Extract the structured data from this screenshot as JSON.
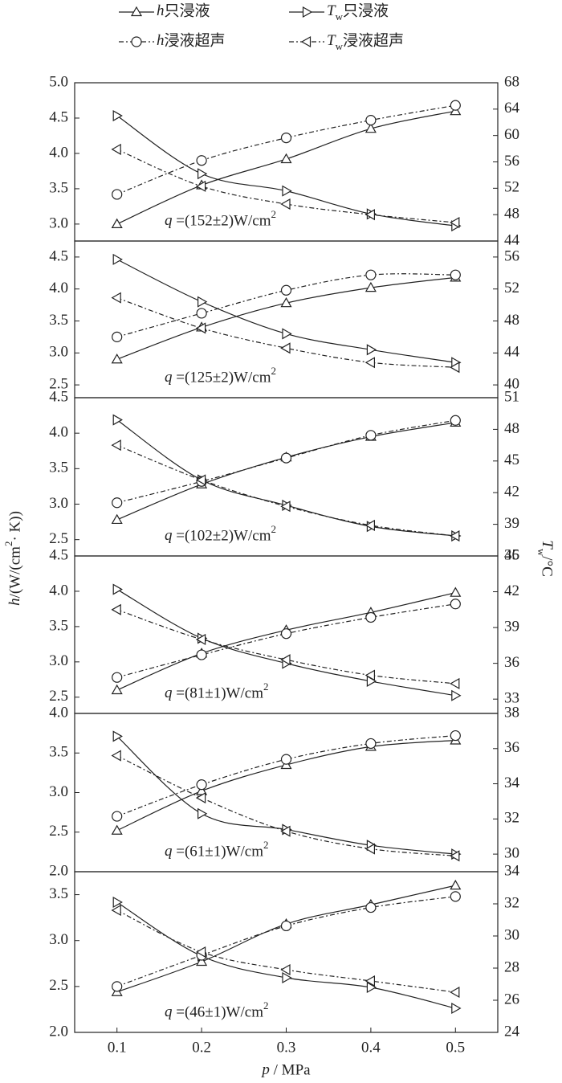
{
  "chart_data": [
    {
      "type": "line",
      "xlim": [
        0.05,
        0.55
      ],
      "x": [
        0.1,
        0.2,
        0.3,
        0.4,
        0.5
      ],
      "ylabel": "h/(W/(cm2· K))",
      "y2label": "Tw/°C",
      "ylim": [
        2.76,
        5.0
      ],
      "yticks": [
        {
          "value": 3.0,
          "label": "3.0"
        },
        3.5,
        {
          "value": 4.0,
          "label": "4.0"
        },
        4.5,
        {
          "value": 5.0,
          "label": "5.0"
        }
      ],
      "y2lim": [
        44,
        68
      ],
      "y2ticks": [
        44,
        48,
        52,
        56,
        60,
        64,
        68
      ],
      "annotation": "q =(152±2)W/cm2",
      "series": [
        {
          "name": "h只浸液",
          "color": "#222222",
          "marker": "triangle-up",
          "dash": "solid",
          "values": [
            3.0,
            3.55,
            3.92,
            4.35,
            4.6
          ]
        },
        {
          "name": "Tw只浸液",
          "color": "#222222",
          "marker": "triangle-right",
          "dash": "solid",
          "axis": "y2",
          "values": [
            63.0,
            54.2,
            51.6,
            48.1,
            46.3
          ]
        },
        {
          "name": "h浸液超声",
          "color": "#222222",
          "marker": "circle",
          "dash": "dashdot",
          "values": [
            3.42,
            3.9,
            4.22,
            4.47,
            4.68
          ]
        },
        {
          "name": "Tw浸液超声",
          "color": "#222222",
          "marker": "triangle-left",
          "dash": "dashdot",
          "axis": "y2",
          "values": [
            57.9,
            52.3,
            49.6,
            48.0,
            46.8
          ]
        }
      ]
    },
    {
      "type": "line",
      "xlim": [
        0.05,
        0.55
      ],
      "x": [
        0.1,
        0.2,
        0.3,
        0.4,
        0.5
      ],
      "ylim": [
        2.3,
        4.75
      ],
      "yticks": [
        2.5,
        {
          "value": 3.0,
          "label": "3.0"
        },
        3.5,
        {
          "value": 4.0,
          "label": "4.0"
        },
        4.5
      ],
      "y2lim": [
        38.4,
        58
      ],
      "y2ticks": [
        40,
        44,
        48,
        52,
        56
      ],
      "annotation": "q =(125±2)W/cm2",
      "series": [
        {
          "color": "#222222",
          "marker": "triangle-up",
          "dash": "solid",
          "values": [
            2.9,
            3.4,
            3.78,
            4.02,
            4.18
          ]
        },
        {
          "color": "#222222",
          "marker": "triangle-right",
          "dash": "solid",
          "axis": "y2",
          "values": [
            55.7,
            50.4,
            46.4,
            44.4,
            42.8
          ]
        },
        {
          "color": "#222222",
          "marker": "circle",
          "dash": "dashdot",
          "values": [
            3.25,
            3.62,
            3.98,
            4.22,
            4.22
          ]
        },
        {
          "color": "#222222",
          "marker": "triangle-left",
          "dash": "dashdot",
          "axis": "y2",
          "values": [
            50.9,
            47.1,
            44.6,
            42.8,
            42.2
          ]
        }
      ]
    },
    {
      "type": "line",
      "xlim": [
        0.05,
        0.55
      ],
      "x": [
        0.1,
        0.2,
        0.3,
        0.4,
        0.5
      ],
      "ylim": [
        2.27,
        4.5
      ],
      "yticks": [
        2.5,
        {
          "value": 3.0,
          "label": "3.0"
        },
        3.5,
        {
          "value": 4.0,
          "label": "4.0"
        },
        4.5
      ],
      "y2lim": [
        36,
        51
      ],
      "y2ticks": [
        36,
        39,
        42,
        45,
        48,
        51
      ],
      "annotation": "q =(102±2)W/cm2",
      "series": [
        {
          "color": "#222222",
          "marker": "triangle-up",
          "dash": "solid",
          "values": [
            2.78,
            3.28,
            3.66,
            3.95,
            4.15
          ]
        },
        {
          "color": "#222222",
          "marker": "triangle-right",
          "dash": "solid",
          "axis": "y2",
          "values": [
            48.9,
            43.2,
            40.8,
            38.8,
            37.9
          ]
        },
        {
          "color": "#222222",
          "marker": "circle",
          "dash": "dashdot",
          "values": [
            3.02,
            3.32,
            3.65,
            3.97,
            4.18
          ]
        },
        {
          "color": "#222222",
          "marker": "triangle-left",
          "dash": "dashdot",
          "axis": "y2",
          "values": [
            46.5,
            43.2,
            40.7,
            38.9,
            37.9
          ]
        }
      ]
    },
    {
      "type": "line",
      "xlim": [
        0.05,
        0.55
      ],
      "x": [
        0.1,
        0.2,
        0.3,
        0.4,
        0.5
      ],
      "ylim": [
        2.27,
        4.5
      ],
      "yticks": [
        2.5,
        {
          "value": 3.0,
          "label": "3.0"
        },
        3.5,
        {
          "value": 4.0,
          "label": "4.0"
        },
        4.5
      ],
      "y2lim": [
        31.8,
        45
      ],
      "y2ticks": [
        33,
        36,
        39,
        42,
        45
      ],
      "annotation": "q =(81±1)W/cm2",
      "series": [
        {
          "color": "#222222",
          "marker": "triangle-up",
          "dash": "solid",
          "values": [
            2.6,
            3.12,
            3.45,
            3.7,
            3.98
          ]
        },
        {
          "color": "#222222",
          "marker": "triangle-right",
          "dash": "solid",
          "axis": "y2",
          "values": [
            42.2,
            38.1,
            36.0,
            34.5,
            33.3
          ]
        },
        {
          "color": "#222222",
          "marker": "circle",
          "dash": "dashdot",
          "values": [
            2.78,
            3.1,
            3.4,
            3.63,
            3.82
          ]
        },
        {
          "color": "#222222",
          "marker": "triangle-left",
          "dash": "dashdot",
          "axis": "y2",
          "values": [
            40.5,
            38.0,
            36.3,
            35.0,
            34.3
          ]
        }
      ]
    },
    {
      "type": "line",
      "xlim": [
        0.05,
        0.55
      ],
      "x": [
        0.1,
        0.2,
        0.3,
        0.4,
        0.5
      ],
      "ylim": [
        2.0,
        4.0
      ],
      "yticks": [
        {
          "value": 2.0,
          "label": "2.0"
        },
        2.5,
        {
          "value": 3.0,
          "label": "3.0"
        },
        3.5,
        {
          "value": 4.0,
          "label": "4.0"
        }
      ],
      "y2lim": [
        29,
        38
      ],
      "y2ticks": [
        30,
        32,
        34,
        36,
        38
      ],
      "annotation": "q =(61±1)W/cm2",
      "series": [
        {
          "color": "#222222",
          "marker": "triangle-up",
          "dash": "solid",
          "values": [
            2.52,
            3.02,
            3.35,
            3.58,
            3.66
          ]
        },
        {
          "color": "#222222",
          "marker": "triangle-right",
          "dash": "solid",
          "axis": "y2",
          "values": [
            36.7,
            32.3,
            31.4,
            30.5,
            30.0
          ]
        },
        {
          "color": "#222222",
          "marker": "circle",
          "dash": "dashdot",
          "values": [
            2.7,
            3.1,
            3.42,
            3.62,
            3.72
          ]
        },
        {
          "color": "#222222",
          "marker": "triangle-left",
          "dash": "dashdot",
          "axis": "y2",
          "values": [
            35.6,
            33.2,
            31.3,
            30.3,
            29.9
          ]
        }
      ]
    },
    {
      "type": "line",
      "xlim": [
        0.05,
        0.55
      ],
      "x": [
        0.1,
        0.2,
        0.3,
        0.4,
        0.5
      ],
      "xlabel": "p / MPa",
      "xticks": [
        0.1,
        0.2,
        0.3,
        0.4,
        0.5
      ],
      "ylim": [
        2.0,
        3.75
      ],
      "yticks": [
        {
          "value": 2.0,
          "label": "2.0"
        },
        2.5,
        {
          "value": 3.0,
          "label": "3.0"
        },
        3.5
      ],
      "y2lim": [
        24,
        34
      ],
      "y2ticks": [
        24,
        26,
        28,
        30,
        32,
        34
      ],
      "annotation": "q =(46±1)W/cm2",
      "series": [
        {
          "color": "#222222",
          "marker": "triangle-up",
          "dash": "solid",
          "values": [
            2.44,
            2.77,
            3.18,
            3.39,
            3.6
          ]
        },
        {
          "color": "#222222",
          "marker": "triangle-right",
          "dash": "solid",
          "axis": "y2",
          "values": [
            32.1,
            28.75,
            27.4,
            26.8,
            25.5
          ]
        },
        {
          "color": "#222222",
          "marker": "circle",
          "dash": "dashdot",
          "values": [
            2.5,
            2.84,
            3.16,
            3.36,
            3.48
          ]
        },
        {
          "color": "#222222",
          "marker": "triangle-left",
          "dash": "dashdot",
          "axis": "y2",
          "values": [
            31.6,
            29.0,
            27.9,
            27.2,
            26.5
          ]
        }
      ]
    }
  ]
}
